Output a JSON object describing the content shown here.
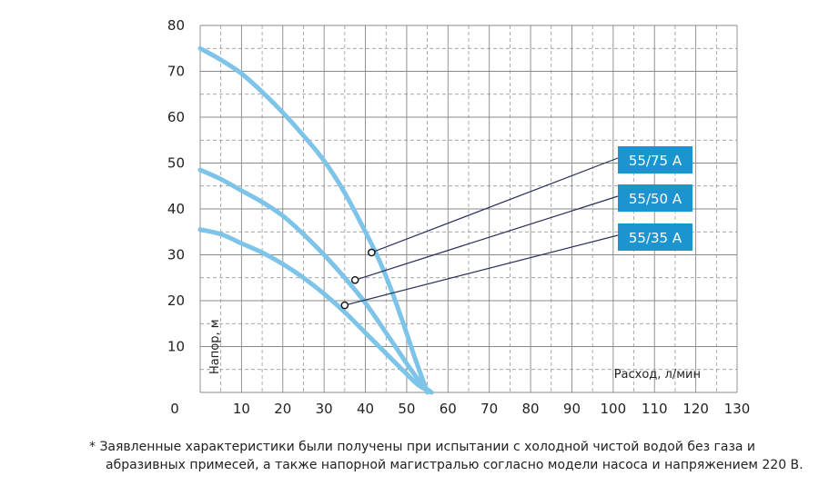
{
  "chart_data": {
    "type": "line",
    "xlabel": "Расход, л/мин",
    "ylabel": "Напор, м",
    "xlim": [
      0,
      130
    ],
    "ylim": [
      0,
      80
    ],
    "x_ticks": [
      "0",
      "10",
      "20",
      "30",
      "40",
      "50",
      "60",
      "70",
      "80",
      "90",
      "100",
      "110",
      "120",
      "130"
    ],
    "y_ticks": [
      "10",
      "20",
      "30",
      "40",
      "50",
      "60",
      "70",
      "80"
    ],
    "grid": true,
    "colors": {
      "curve": "#7ec4e8",
      "label_bg": "#1b94cf",
      "grid": "#888888",
      "pointer": "#2a2f5a"
    },
    "series": [
      {
        "name": "55/75 A",
        "x": [
          0,
          5,
          10,
          15,
          20,
          25,
          30,
          35,
          40,
          43,
          46,
          49,
          52,
          55
        ],
        "y": [
          75,
          72.5,
          69.5,
          65.5,
          61,
          56,
          50.5,
          43.5,
          35,
          29.5,
          23,
          15.5,
          7.5,
          0
        ],
        "marker": {
          "x": 41.5,
          "y": 30.5
        }
      },
      {
        "name": "55/50 A",
        "x": [
          0,
          5,
          10,
          15,
          20,
          25,
          30,
          35,
          40,
          45,
          48,
          51,
          54,
          56
        ],
        "y": [
          48.5,
          46.5,
          44,
          41.5,
          38.5,
          34.5,
          30,
          25,
          19.5,
          13,
          9,
          5,
          1.5,
          0
        ],
        "marker": {
          "x": 37.5,
          "y": 24.5
        }
      },
      {
        "name": "55/35 A",
        "x": [
          0,
          5,
          10,
          15,
          20,
          25,
          30,
          35,
          40,
          45,
          50,
          53,
          56
        ],
        "y": [
          35.5,
          34.5,
          32.5,
          30.5,
          28,
          25,
          21.5,
          17.5,
          13,
          8.5,
          4,
          1.5,
          0
        ],
        "marker": {
          "x": 35,
          "y": 19
        }
      }
    ]
  },
  "footnote": {
    "line1": "* Заявленные характеристики были получены при испытании с холодной чистой водой без газа и",
    "line2": "абразивных примесей, а также напорной магистралью согласно модели насоса и напряжением  220 В."
  }
}
